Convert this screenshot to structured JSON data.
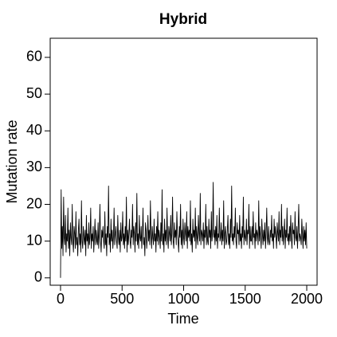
{
  "chart_data": {
    "type": "line",
    "title": "Hybrid",
    "x_label": "Time",
    "y_label": "Mutation rate",
    "xlim": [
      -84,
      2084
    ],
    "ylim": [
      -2,
      65.2
    ],
    "xticks": [
      0,
      500,
      1000,
      1500,
      2000
    ],
    "yticks": [
      0,
      10,
      20,
      30,
      40,
      50,
      60
    ],
    "x": [
      0,
      5,
      10,
      15,
      20,
      25,
      30,
      35,
      40,
      45,
      50,
      55,
      60,
      65,
      70,
      75,
      80,
      85,
      90,
      95,
      100,
      105,
      110,
      115,
      120,
      125,
      130,
      135,
      140,
      145,
      150,
      155,
      160,
      165,
      170,
      175,
      180,
      185,
      190,
      195,
      200,
      205,
      210,
      215,
      220,
      225,
      230,
      235,
      240,
      245,
      250,
      255,
      260,
      265,
      270,
      275,
      280,
      285,
      290,
      295,
      300,
      305,
      310,
      315,
      320,
      325,
      330,
      335,
      340,
      345,
      350,
      355,
      360,
      365,
      370,
      375,
      380,
      385,
      390,
      395,
      400,
      405,
      410,
      415,
      420,
      425,
      430,
      435,
      440,
      445,
      450,
      455,
      460,
      465,
      470,
      475,
      480,
      485,
      490,
      495,
      500,
      505,
      510,
      515,
      520,
      525,
      530,
      535,
      540,
      545,
      550,
      555,
      560,
      565,
      570,
      575,
      580,
      585,
      590,
      595,
      600,
      605,
      610,
      615,
      620,
      625,
      630,
      635,
      640,
      645,
      650,
      655,
      660,
      665,
      670,
      675,
      680,
      685,
      690,
      695,
      700,
      705,
      710,
      715,
      720,
      725,
      730,
      735,
      740,
      745,
      750,
      755,
      760,
      765,
      770,
      775,
      780,
      785,
      790,
      795,
      800,
      805,
      810,
      815,
      820,
      825,
      830,
      835,
      840,
      845,
      850,
      855,
      860,
      865,
      870,
      875,
      880,
      885,
      890,
      895,
      900,
      905,
      910,
      915,
      920,
      925,
      930,
      935,
      940,
      945,
      950,
      955,
      960,
      965,
      970,
      975,
      980,
      985,
      990,
      995,
      1000,
      1005,
      1010,
      1015,
      1020,
      1025,
      1030,
      1035,
      1040,
      1045,
      1050,
      1055,
      1060,
      1065,
      1070,
      1075,
      1080,
      1085,
      1090,
      1095,
      1100,
      1105,
      1110,
      1115,
      1120,
      1125,
      1130,
      1135,
      1140,
      1145,
      1150,
      1155,
      1160,
      1165,
      1170,
      1175,
      1180,
      1185,
      1190,
      1195,
      1200,
      1205,
      1210,
      1215,
      1220,
      1225,
      1230,
      1235,
      1240,
      1245,
      1250,
      1255,
      1260,
      1265,
      1270,
      1275,
      1280,
      1285,
      1290,
      1295,
      1300,
      1305,
      1310,
      1315,
      1320,
      1325,
      1330,
      1335,
      1340,
      1345,
      1350,
      1355,
      1360,
      1365,
      1370,
      1375,
      1380,
      1385,
      1390,
      1395,
      1400,
      1405,
      1410,
      1415,
      1420,
      1425,
      1430,
      1435,
      1440,
      1445,
      1450,
      1455,
      1460,
      1465,
      1470,
      1475,
      1480,
      1485,
      1490,
      1495,
      1500,
      1505,
      1510,
      1515,
      1520,
      1525,
      1530,
      1535,
      1540,
      1545,
      1550,
      1555,
      1560,
      1565,
      1570,
      1575,
      1580,
      1585,
      1590,
      1595,
      1600,
      1605,
      1610,
      1615,
      1620,
      1625,
      1630,
      1635,
      1640,
      1645,
      1650,
      1655,
      1660,
      1665,
      1670,
      1675,
      1680,
      1685,
      1690,
      1695,
      1700,
      1705,
      1710,
      1715,
      1720,
      1725,
      1730,
      1735,
      1740,
      1745,
      1750,
      1755,
      1760,
      1765,
      1770,
      1775,
      1780,
      1785,
      1790,
      1795,
      1800,
      1805,
      1810,
      1815,
      1820,
      1825,
      1830,
      1835,
      1840,
      1845,
      1850,
      1855,
      1860,
      1865,
      1870,
      1875,
      1880,
      1885,
      1890,
      1895,
      1900,
      1905,
      1910,
      1915,
      1920,
      1925,
      1930,
      1935,
      1940,
      1945,
      1950,
      1955,
      1960,
      1965,
      1970,
      1975,
      1980,
      1985,
      1990,
      1995,
      2000
    ],
    "series": [
      {
        "color": "#000000",
        "values": [
          0,
          24,
          8,
          14,
          6,
          22,
          11,
          9,
          17,
          7,
          12,
          10,
          19,
          8,
          13,
          6,
          15,
          11,
          9,
          20,
          10,
          7,
          14,
          12,
          8,
          18,
          9,
          11,
          6,
          13,
          16,
          9,
          12,
          7,
          21,
          10,
          8,
          14,
          11,
          9,
          13,
          6,
          17,
          10,
          12,
          8,
          15,
          9,
          11,
          19,
          8,
          12,
          10,
          14,
          7,
          11,
          16,
          9,
          13,
          10,
          9,
          15,
          8,
          12,
          20,
          10,
          7,
          13,
          11,
          14,
          10,
          8,
          18,
          9,
          12,
          6,
          14,
          11,
          25,
          9,
          12,
          7,
          16,
          10,
          13,
          8,
          11,
          19,
          9,
          12,
          14,
          10,
          8,
          17,
          11,
          9,
          13,
          7,
          15,
          10,
          11,
          18,
          9,
          12,
          8,
          14,
          10,
          22,
          7,
          13,
          9,
          12,
          16,
          10,
          8,
          13,
          11,
          20,
          9,
          14,
          12,
          7,
          15,
          10,
          23,
          9,
          12,
          8,
          17,
          11,
          10,
          14,
          8,
          12,
          19,
          9,
          11,
          6,
          15,
          13,
          8,
          11,
          17,
          10,
          13,
          9,
          21,
          12,
          8,
          14,
          11,
          9,
          16,
          10,
          12,
          7,
          14,
          10,
          18,
          9,
          13,
          11,
          8,
          15,
          10,
          24,
          9,
          12,
          7,
          16,
          10,
          13,
          9,
          19,
          11,
          8,
          14,
          12,
          10,
          17,
          9,
          12,
          22,
          10,
          8,
          15,
          11,
          13,
          9,
          18,
          12,
          10,
          7,
          14,
          11,
          20,
          9,
          13,
          8,
          16,
          11,
          9,
          15,
          12,
          10,
          18,
          8,
          14,
          11,
          13,
          10,
          21,
          9,
          12,
          7,
          16,
          11,
          13,
          10,
          19,
          8,
          14,
          11,
          9,
          17,
          12,
          10,
          23,
          9,
          13,
          12,
          10,
          15,
          8,
          13,
          11,
          20,
          9,
          14,
          10,
          9,
          16,
          11,
          13,
          8,
          18,
          10,
          12,
          26,
          11,
          13,
          9,
          14,
          10,
          17,
          8,
          12,
          11,
          19,
          10,
          11,
          15,
          9,
          13,
          10,
          21,
          8,
          12,
          14,
          9,
          10,
          13,
          17,
          9,
          12,
          8,
          16,
          11,
          25,
          10,
          12,
          9,
          14,
          11,
          19,
          10,
          8,
          15,
          12,
          13,
          9,
          17,
          10,
          12,
          8,
          14,
          11,
          22,
          9,
          13,
          11,
          10,
          16,
          9,
          13,
          12,
          20,
          8,
          14,
          10,
          10,
          14,
          9,
          18,
          11,
          12,
          8,
          15,
          10,
          13,
          12,
          9,
          21,
          10,
          14,
          11,
          8,
          16,
          12,
          9,
          13,
          10,
          15,
          8,
          12,
          19,
          11,
          9,
          14,
          10,
          9,
          13,
          11,
          17,
          10,
          12,
          8,
          16,
          11,
          14,
          11,
          8,
          15,
          12,
          10,
          18,
          9,
          13,
          11,
          20,
          10,
          14,
          9,
          12,
          16,
          8,
          13,
          11,
          19,
          10,
          12,
          9,
          14,
          10,
          17,
          11,
          8,
          15,
          12,
          13,
          9,
          18,
          11,
          10,
          14,
          8,
          13,
          20,
          10,
          12,
          11,
          9,
          16,
          12,
          8,
          14,
          10,
          13,
          9,
          15,
          8
        ]
      }
    ]
  }
}
